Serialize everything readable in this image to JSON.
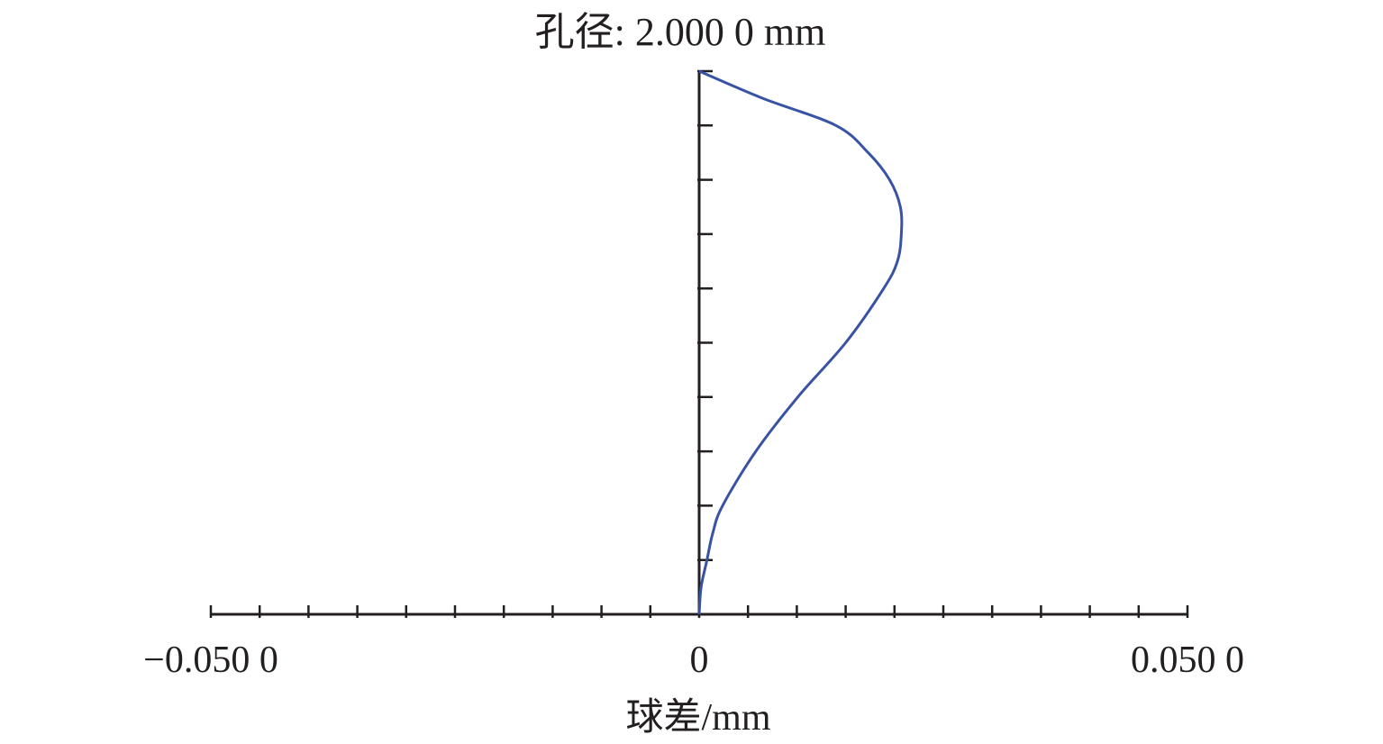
{
  "chart_data": {
    "type": "line",
    "title": "孔径: 2.000 0 mm",
    "xlabel": "球差/mm",
    "ylabel": "",
    "xlim": [
      -0.05,
      0.05
    ],
    "ylim": [
      0,
      1
    ],
    "x_tick_labels": [
      {
        "value": -0.05,
        "label": "−0.050 0"
      },
      {
        "value": 0,
        "label": "0"
      },
      {
        "value": 0.05,
        "label": "0.050 0"
      }
    ],
    "x_minor_tick_step": 0.005,
    "y_tick_step": 0.1,
    "grid": false,
    "series": [
      {
        "color": "#3953a4",
        "y": [
          0,
          0.05,
          0.1,
          0.15,
          0.2,
          0.3,
          0.4,
          0.5,
          0.6,
          0.65,
          0.7,
          0.75,
          0.8,
          0.85,
          0.9,
          0.95,
          1.0
        ],
        "x": [
          0,
          0.0002,
          0.0008,
          0.0014,
          0.0024,
          0.0058,
          0.0101,
          0.015,
          0.0189,
          0.0203,
          0.0207,
          0.0206,
          0.0195,
          0.0173,
          0.014,
          0.0065,
          0
        ]
      }
    ]
  }
}
